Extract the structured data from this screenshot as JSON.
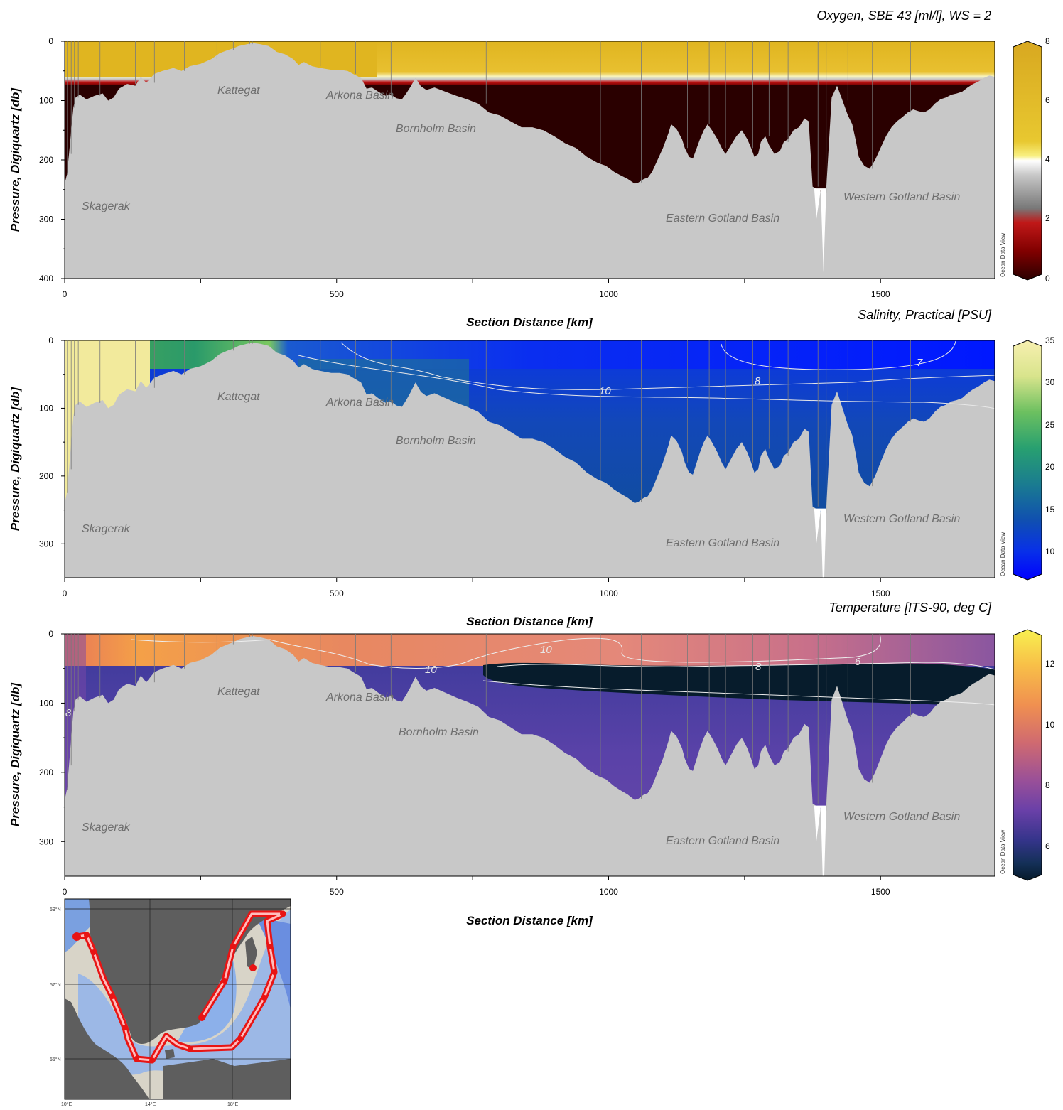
{
  "panels": [
    {
      "id": "oxygen",
      "title": "Oxygen, SBE 43 [ml/l], WS = 2",
      "ylabel": "Pressure, Digiquartz [db]",
      "xlabel": "Section Distance [km]",
      "colorbar_ticks": [
        "8",
        "6",
        "4",
        "2",
        "0"
      ],
      "watermark": "Ocean Data View"
    },
    {
      "id": "salinity",
      "title": "Salinity, Practical [PSU]",
      "ylabel": "Pressure, Digiquartz [db]",
      "xlabel": "Section Distance [km]",
      "colorbar_ticks": [
        "35",
        "30",
        "25",
        "20",
        "15",
        "10"
      ],
      "watermark": "Ocean Data View"
    },
    {
      "id": "temperature",
      "title": "Temperature [ITS-90, deg C]",
      "ylabel": "Pressure, Digiquartz [db]",
      "xlabel": "Section Distance [km]",
      "colorbar_ticks": [
        "12",
        "10",
        "8",
        "6"
      ],
      "watermark": "Ocean Data View"
    }
  ],
  "map_labels": [
    "59°N",
    "57°N",
    "55°N",
    "10°E",
    "14°E",
    "18°E"
  ],
  "chart_data": [
    {
      "type": "heatmap",
      "title": "Oxygen, SBE 43 [ml/l], WS = 2",
      "xlabel": "Section Distance [km]",
      "ylabel": "Pressure, Digiquartz [db]",
      "xlim": [
        0,
        1710
      ],
      "ylim": [
        400,
        0
      ],
      "x_ticks": [
        0,
        500,
        1000,
        1500
      ],
      "y_ticks": [
        0,
        100,
        200,
        300,
        400
      ],
      "colorbar": {
        "min": 0,
        "max": 8,
        "ticks": [
          0,
          2,
          4,
          6,
          8
        ],
        "colors": [
          "#2a0000",
          "#8a0000",
          "#e01818",
          "#707070",
          "#d0d0d0",
          "#ffffff",
          "#f0e030",
          "#e0b020",
          "#d8a020"
        ]
      },
      "layers": [
        {
          "depth_top": 0,
          "depth_bottom": 55,
          "value": 6.3
        },
        {
          "depth_top": 55,
          "depth_bottom": 65,
          "value": 3.5
        },
        {
          "depth_top": 65,
          "depth_bottom": 260,
          "value": 0.2
        }
      ],
      "region_labels": [
        "Kattegat",
        "Arkona Basin",
        "Bornholm Basin",
        "Skagerak",
        "Eastern Gotland Basin",
        "Western Gotland Basin"
      ],
      "grid": false
    },
    {
      "type": "heatmap",
      "title": "Salinity, Practical [PSU]",
      "xlabel": "Section Distance [km]",
      "ylabel": "Pressure, Digiquartz [db]",
      "xlim": [
        0,
        1710
      ],
      "ylim": [
        350,
        0
      ],
      "x_ticks": [
        0,
        500,
        1000,
        1500
      ],
      "y_ticks": [
        0,
        100,
        200,
        300
      ],
      "colorbar": {
        "min": 7,
        "max": 35,
        "ticks": [
          10,
          15,
          20,
          25,
          30,
          35
        ],
        "colors": [
          "#0000ff",
          "#0a38e0",
          "#1060b0",
          "#1a8a8a",
          "#2aa060",
          "#60b850",
          "#c8dc80",
          "#f8f0b0"
        ]
      },
      "contour_labels": [
        "7",
        "8",
        "10"
      ],
      "region_labels": [
        "Kattegat",
        "Arkona Basin",
        "Bornholm Basin",
        "Skagerak",
        "Eastern Gotland Basin",
        "Western Gotland Basin"
      ],
      "grid": false
    },
    {
      "type": "heatmap",
      "title": "Temperature [ITS-90, deg C]",
      "xlabel": "Section Distance [km]",
      "ylabel": "Pressure, Digiquartz [db]",
      "xlim": [
        0,
        1710
      ],
      "ylim": [
        350,
        0
      ],
      "x_ticks": [
        0,
        500,
        1000,
        1500
      ],
      "y_ticks": [
        0,
        100,
        200,
        300
      ],
      "colorbar": {
        "min": 5,
        "max": 13,
        "ticks": [
          6,
          8,
          10,
          12
        ],
        "colors": [
          "#061a2a",
          "#1c3a7a",
          "#4a38a0",
          "#7a48a8",
          "#b05a90",
          "#e07868",
          "#f09a48",
          "#f8c848",
          "#f8f050"
        ]
      },
      "contour_labels": [
        "10",
        "10",
        "8",
        "6",
        "8"
      ],
      "region_labels": [
        "Kattegat",
        "Arkona Basin",
        "Bornholm Basin",
        "Skagerak",
        "Eastern Gotland Basin",
        "Western Gotland Basin"
      ],
      "grid": false
    }
  ]
}
